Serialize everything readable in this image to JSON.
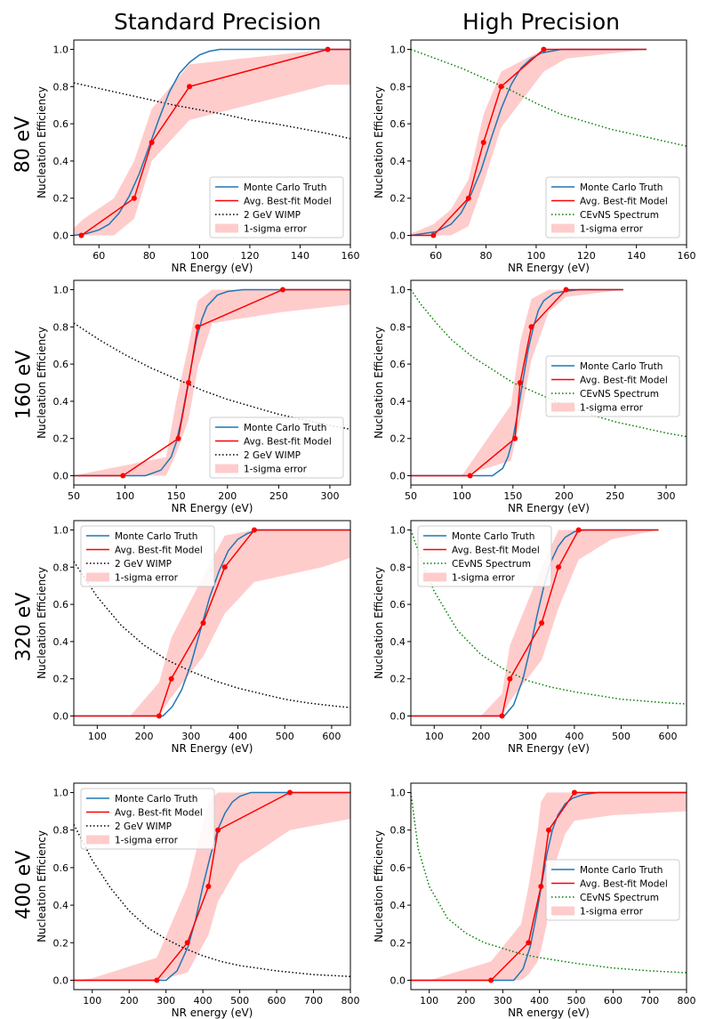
{
  "column_titles": [
    "Standard Precision",
    "High Precision"
  ],
  "row_labels": [
    "80 eV",
    "160 eV",
    "320 eV",
    "400 eV"
  ],
  "colors": {
    "truth": "#1f77b4",
    "model": "#ff0000",
    "band": "#ffcccc",
    "wimp": "#000000",
    "cevns": "#008000"
  },
  "chart_data": [
    {
      "id": "std-80",
      "type": "line",
      "panel": "Standard Precision / 80 eV",
      "xlabel": "NR Energy (eV)",
      "ylabel": "Nucleation Efficiency",
      "xlim": [
        50,
        160
      ],
      "ylim": [
        -0.05,
        1.05
      ],
      "xticks": [
        60,
        80,
        100,
        120,
        140,
        160
      ],
      "yticks": [
        0.0,
        0.2,
        0.4,
        0.6,
        0.8,
        1.0
      ],
      "legend": "lower-right",
      "legend_labels": [
        "Monte Carlo Truth",
        "Avg. Best-fit Model",
        "2 GeV WIMP",
        "1-sigma error"
      ],
      "truth_x": [
        50,
        55,
        60,
        64,
        68,
        72,
        76,
        80,
        84,
        88,
        92,
        96,
        100,
        104,
        108,
        112,
        116,
        120,
        130,
        145,
        160
      ],
      "truth_y": [
        0.0,
        0.01,
        0.03,
        0.06,
        0.12,
        0.21,
        0.33,
        0.48,
        0.63,
        0.77,
        0.87,
        0.93,
        0.97,
        0.99,
        1.0,
        1.0,
        1.0,
        1.0,
        1.0,
        1.0,
        1.0
      ],
      "model_x": [
        53,
        74,
        81,
        96,
        151,
        160
      ],
      "model_y": [
        0.0,
        0.2,
        0.5,
        0.8,
        1.0,
        1.0
      ],
      "band_x": [
        50,
        54,
        66,
        74,
        81,
        96,
        151,
        160
      ],
      "band_upper": [
        0.04,
        0.09,
        0.2,
        0.4,
        0.68,
        0.92,
        1.0,
        1.0
      ],
      "band_lower": [
        0.0,
        0.0,
        0.0,
        0.09,
        0.4,
        0.62,
        0.81,
        0.81
      ],
      "ref_name": "2 GeV WIMP",
      "ref_style": "wimp",
      "ref_x": [
        50,
        60,
        70,
        80,
        90,
        100,
        110,
        120,
        130,
        140,
        150,
        160
      ],
      "ref_y": [
        0.82,
        0.79,
        0.76,
        0.73,
        0.7,
        0.675,
        0.65,
        0.62,
        0.6,
        0.575,
        0.55,
        0.52
      ]
    },
    {
      "id": "hp-80",
      "type": "line",
      "panel": "High Precision / 80 eV",
      "xlabel": "NR Energy (eV)",
      "ylabel": "Nucleation Efficiency",
      "xlim": [
        50,
        160
      ],
      "ylim": [
        -0.05,
        1.05
      ],
      "xticks": [
        60,
        80,
        100,
        120,
        140,
        160
      ],
      "yticks": [
        0.0,
        0.2,
        0.4,
        0.6,
        0.8,
        1.0
      ],
      "legend": "lower-right",
      "legend_labels": [
        "Monte Carlo Truth",
        "Avg. Best-fit Model",
        "CEvNS Spectrum",
        "1-sigma error"
      ],
      "truth_x": [
        50,
        60,
        66,
        70,
        74,
        78,
        82,
        86,
        90,
        94,
        98,
        102,
        106,
        110,
        120,
        144
      ],
      "truth_y": [
        0.0,
        0.02,
        0.06,
        0.12,
        0.22,
        0.35,
        0.52,
        0.68,
        0.81,
        0.9,
        0.95,
        0.98,
        0.99,
        1.0,
        1.0,
        1.0
      ],
      "model_x": [
        50,
        59,
        73,
        79,
        86,
        103,
        144
      ],
      "model_y": [
        0.0,
        0.0,
        0.2,
        0.5,
        0.8,
        1.0,
        1.0
      ],
      "band_x": [
        50,
        59,
        66,
        73,
        79,
        86,
        103,
        112,
        144
      ],
      "band_upper": [
        0.01,
        0.06,
        0.14,
        0.3,
        0.65,
        0.88,
        1.0,
        1.0,
        1.0
      ],
      "band_lower": [
        0.0,
        0.0,
        0.0,
        0.05,
        0.28,
        0.58,
        0.88,
        0.95,
        1.0
      ],
      "ref_name": "CEvNS Spectrum",
      "ref_style": "cevns",
      "ref_x": [
        50,
        60,
        70,
        80,
        90,
        100,
        110,
        120,
        130,
        140,
        150,
        160
      ],
      "ref_y": [
        1.0,
        0.95,
        0.9,
        0.84,
        0.78,
        0.71,
        0.65,
        0.61,
        0.57,
        0.54,
        0.51,
        0.48
      ]
    },
    {
      "id": "std-160",
      "type": "line",
      "panel": "Standard Precision / 160 eV",
      "xlabel": "NR Energy (eV)",
      "ylabel": "Nucleation Efficiency",
      "xlim": [
        50,
        320
      ],
      "ylim": [
        -0.05,
        1.05
      ],
      "xticks": [
        50,
        100,
        150,
        200,
        250,
        300
      ],
      "yticks": [
        0.0,
        0.2,
        0.4,
        0.6,
        0.8,
        1.0
      ],
      "legend": "lower-right",
      "legend_labels": [
        "Monte Carlo Truth",
        "Avg. Best-fit Model",
        "2 GeV WIMP",
        "1-sigma error"
      ],
      "truth_x": [
        50,
        120,
        135,
        145,
        150,
        155,
        160,
        165,
        170,
        175,
        180,
        190,
        200,
        215,
        230,
        320
      ],
      "truth_y": [
        0.0,
        0.0,
        0.03,
        0.1,
        0.18,
        0.3,
        0.45,
        0.6,
        0.74,
        0.84,
        0.91,
        0.97,
        0.99,
        1.0,
        1.0,
        1.0
      ],
      "model_x": [
        50,
        98,
        152,
        162,
        171,
        254,
        320
      ],
      "model_y": [
        0.0,
        0.0,
        0.2,
        0.5,
        0.8,
        1.0,
        1.0
      ],
      "band_x": [
        50,
        140,
        150,
        162,
        171,
        185,
        254,
        320
      ],
      "band_upper": [
        0.0,
        0.1,
        0.4,
        0.7,
        0.94,
        1.0,
        1.0,
        1.0
      ],
      "band_lower": [
        0.0,
        0.0,
        0.12,
        0.3,
        0.58,
        0.82,
        0.88,
        0.92
      ],
      "ref_name": "2 GeV WIMP",
      "ref_style": "wimp",
      "ref_x": [
        50,
        75,
        100,
        125,
        150,
        175,
        200,
        225,
        250,
        275,
        300,
        320
      ],
      "ref_y": [
        0.82,
        0.73,
        0.65,
        0.58,
        0.52,
        0.46,
        0.41,
        0.37,
        0.33,
        0.3,
        0.27,
        0.25
      ]
    },
    {
      "id": "hp-160",
      "type": "line",
      "panel": "High Precision / 160 eV",
      "xlabel": "NR Energy (eV)",
      "ylabel": "Nucleation Efficiency",
      "xlim": [
        50,
        320
      ],
      "ylim": [
        -0.05,
        1.05
      ],
      "xticks": [
        50,
        100,
        150,
        200,
        250,
        300
      ],
      "yticks": [
        0.0,
        0.2,
        0.4,
        0.6,
        0.8,
        1.0
      ],
      "legend": "center-right",
      "legend_labels": [
        "Monte Carlo Truth",
        "Avg. Best-fit Model",
        "CEvNS Spectrum",
        "1-sigma error"
      ],
      "truth_x": [
        50,
        130,
        140,
        145,
        150,
        155,
        160,
        165,
        170,
        175,
        180,
        190,
        200,
        215,
        258
      ],
      "truth_y": [
        0.0,
        0.0,
        0.04,
        0.1,
        0.2,
        0.35,
        0.52,
        0.68,
        0.8,
        0.89,
        0.94,
        0.98,
        0.99,
        1.0,
        1.0
      ],
      "model_x": [
        50,
        108,
        152,
        157,
        168,
        202,
        258
      ],
      "model_y": [
        0.0,
        0.0,
        0.2,
        0.5,
        0.8,
        1.0,
        1.0
      ],
      "band_x": [
        50,
        100,
        148,
        157,
        168,
        185,
        202,
        258
      ],
      "band_upper": [
        0.0,
        0.0,
        0.38,
        0.72,
        0.95,
        1.0,
        1.0,
        1.0
      ],
      "band_lower": [
        0.0,
        0.0,
        0.08,
        0.3,
        0.62,
        0.88,
        0.96,
        1.0
      ],
      "ref_name": "CEvNS Spectrum",
      "ref_style": "cevns",
      "ref_x": [
        50,
        60,
        75,
        90,
        110,
        130,
        150,
        175,
        200,
        225,
        250,
        275,
        300,
        320
      ],
      "ref_y": [
        1.0,
        0.92,
        0.82,
        0.73,
        0.64,
        0.57,
        0.5,
        0.44,
        0.38,
        0.33,
        0.29,
        0.26,
        0.23,
        0.21
      ]
    },
    {
      "id": "std-320",
      "type": "line",
      "panel": "Standard Precision / 320 eV",
      "xlabel": "NR Energy (eV)",
      "ylabel": "Nucleation Efficiency",
      "xlim": [
        50,
        640
      ],
      "ylim": [
        -0.05,
        1.05
      ],
      "xticks": [
        100,
        200,
        300,
        400,
        500,
        600
      ],
      "yticks": [
        0.0,
        0.2,
        0.4,
        0.6,
        0.8,
        1.0
      ],
      "legend": "upper-left",
      "legend_labels": [
        "Monte Carlo Truth",
        "Avg. Best-fit Model",
        "2 GeV WIMP",
        "1-sigma error"
      ],
      "truth_x": [
        50,
        240,
        260,
        280,
        300,
        320,
        340,
        360,
        380,
        400,
        420,
        440,
        470,
        640
      ],
      "truth_y": [
        0.0,
        0.0,
        0.05,
        0.14,
        0.28,
        0.46,
        0.64,
        0.78,
        0.89,
        0.95,
        0.98,
        1.0,
        1.0,
        1.0
      ],
      "model_x": [
        50,
        232,
        258,
        326,
        372,
        435,
        640
      ],
      "model_y": [
        0.0,
        0.0,
        0.2,
        0.5,
        0.8,
        1.0,
        1.0
      ],
      "band_x": [
        50,
        170,
        232,
        258,
        326,
        372,
        435,
        580,
        640
      ],
      "band_upper": [
        0.0,
        0.0,
        0.18,
        0.42,
        0.75,
        0.97,
        1.0,
        1.0,
        1.0
      ],
      "band_lower": [
        0.0,
        0.0,
        0.0,
        0.1,
        0.32,
        0.55,
        0.72,
        0.8,
        0.85
      ],
      "ref_name": "2 GeV WIMP",
      "ref_style": "wimp",
      "ref_x": [
        50,
        100,
        150,
        200,
        250,
        300,
        350,
        400,
        450,
        500,
        550,
        600,
        640
      ],
      "ref_y": [
        0.83,
        0.64,
        0.49,
        0.38,
        0.3,
        0.24,
        0.19,
        0.15,
        0.12,
        0.09,
        0.07,
        0.055,
        0.045
      ]
    },
    {
      "id": "hp-320",
      "type": "line",
      "panel": "High Precision / 320 eV",
      "xlabel": "NR Energy (eV)",
      "ylabel": "Nucleation Efficiency",
      "xlim": [
        50,
        640
      ],
      "ylim": [
        -0.05,
        1.05
      ],
      "xticks": [
        100,
        200,
        300,
        400,
        500,
        600
      ],
      "yticks": [
        0.0,
        0.2,
        0.4,
        0.6,
        0.8,
        1.0
      ],
      "legend": "upper-left",
      "legend_labels": [
        "Monte Carlo Truth",
        "Avg. Best-fit Model",
        "CEvNS Spectrum",
        "1-sigma error"
      ],
      "truth_x": [
        50,
        250,
        270,
        290,
        305,
        320,
        335,
        350,
        365,
        380,
        400,
        420,
        450,
        580
      ],
      "truth_y": [
        0.0,
        0.0,
        0.06,
        0.2,
        0.36,
        0.54,
        0.7,
        0.83,
        0.91,
        0.96,
        0.99,
        1.0,
        1.0,
        1.0
      ],
      "model_x": [
        50,
        245,
        262,
        330,
        366,
        409,
        580
      ],
      "model_y": [
        0.0,
        0.0,
        0.2,
        0.5,
        0.8,
        1.0,
        1.0
      ],
      "band_x": [
        50,
        200,
        245,
        262,
        330,
        366,
        409,
        480,
        580
      ],
      "band_upper": [
        0.0,
        0.0,
        0.12,
        0.38,
        0.8,
        1.0,
        1.0,
        1.0,
        1.0
      ],
      "band_lower": [
        0.0,
        0.0,
        0.0,
        0.08,
        0.3,
        0.58,
        0.84,
        0.95,
        1.0
      ],
      "ref_name": "CEvNS Spectrum",
      "ref_style": "cevns",
      "ref_x": [
        50,
        75,
        100,
        150,
        200,
        250,
        300,
        350,
        400,
        450,
        500,
        550,
        600,
        640
      ],
      "ref_y": [
        1.0,
        0.82,
        0.67,
        0.46,
        0.33,
        0.25,
        0.19,
        0.155,
        0.13,
        0.11,
        0.09,
        0.08,
        0.07,
        0.065
      ]
    },
    {
      "id": "std-400",
      "type": "line",
      "panel": "Standard Precision / 400 eV",
      "xlabel": "NR energy (eV)",
      "ylabel": "Nucleation Efficiency",
      "xlim": [
        50,
        800
      ],
      "ylim": [
        -0.05,
        1.05
      ],
      "xticks": [
        100,
        200,
        300,
        400,
        500,
        600,
        700,
        800
      ],
      "yticks": [
        0.0,
        0.2,
        0.4,
        0.6,
        0.8,
        1.0
      ],
      "legend": "upper-left",
      "legend_labels": [
        "Monte Carlo Truth",
        "Avg. Best-fit Model",
        "2 GeV WIMP",
        "1-sigma error"
      ],
      "truth_x": [
        50,
        300,
        330,
        360,
        380,
        400,
        420,
        440,
        460,
        480,
        500,
        530,
        560,
        800
      ],
      "truth_y": [
        0.0,
        0.0,
        0.05,
        0.18,
        0.32,
        0.5,
        0.66,
        0.8,
        0.89,
        0.95,
        0.98,
        1.0,
        1.0,
        1.0
      ],
      "model_x": [
        50,
        275,
        358,
        415,
        441,
        636,
        800
      ],
      "model_y": [
        0.0,
        0.0,
        0.2,
        0.5,
        0.8,
        1.0,
        1.0
      ],
      "band_x": [
        50,
        100,
        275,
        358,
        415,
        441,
        500,
        636,
        800
      ],
      "band_upper": [
        0.0,
        0.01,
        0.12,
        0.5,
        0.95,
        1.0,
        1.0,
        1.0,
        1.0
      ],
      "band_lower": [
        0.0,
        0.0,
        0.0,
        0.04,
        0.24,
        0.42,
        0.62,
        0.8,
        0.86
      ],
      "ref_name": "2 GeV WIMP",
      "ref_style": "wimp",
      "ref_x": [
        50,
        100,
        150,
        200,
        250,
        300,
        350,
        400,
        450,
        500,
        600,
        700,
        800
      ],
      "ref_y": [
        0.83,
        0.64,
        0.49,
        0.37,
        0.28,
        0.22,
        0.17,
        0.13,
        0.1,
        0.078,
        0.05,
        0.03,
        0.02
      ]
    },
    {
      "id": "hp-400",
      "type": "line",
      "panel": "High Precision / 400 eV",
      "xlabel": "NR energy (eV)",
      "ylabel": "Nucleation Efficiency",
      "xlim": [
        50,
        800
      ],
      "ylim": [
        -0.05,
        1.05
      ],
      "xticks": [
        100,
        200,
        300,
        400,
        500,
        600,
        700,
        800
      ],
      "yticks": [
        0.0,
        0.2,
        0.4,
        0.6,
        0.8,
        1.0
      ],
      "legend": "center-right",
      "legend_labels": [
        "Monte Carlo Truth",
        "Avg. Best-fit Model",
        "CEvNS Spectrum",
        "1-sigma error"
      ],
      "truth_x": [
        50,
        330,
        355,
        375,
        390,
        405,
        420,
        435,
        450,
        470,
        490,
        520,
        560,
        800
      ],
      "truth_y": [
        0.0,
        0.0,
        0.06,
        0.18,
        0.33,
        0.5,
        0.67,
        0.8,
        0.88,
        0.94,
        0.97,
        0.99,
        1.0,
        1.0
      ],
      "model_x": [
        50,
        268,
        370,
        404,
        425,
        495,
        800
      ],
      "model_y": [
        0.0,
        0.0,
        0.2,
        0.5,
        0.8,
        1.0,
        1.0
      ],
      "band_x": [
        50,
        100,
        268,
        350,
        370,
        395,
        404,
        420,
        425,
        470,
        495,
        600,
        800
      ],
      "band_upper": [
        0.0,
        0.0,
        0.1,
        0.3,
        0.5,
        0.8,
        0.95,
        1.0,
        1.0,
        1.0,
        1.0,
        1.0,
        1.0
      ],
      "band_lower": [
        0.0,
        0.0,
        0.0,
        0.0,
        0.03,
        0.1,
        0.16,
        0.3,
        0.52,
        0.78,
        0.85,
        0.88,
        0.9
      ],
      "ref_name": "CEvNS Spectrum",
      "ref_style": "cevns",
      "ref_x": [
        50,
        70,
        100,
        150,
        200,
        250,
        300,
        350,
        400,
        500,
        600,
        700,
        800
      ],
      "ref_y": [
        1.0,
        0.7,
        0.5,
        0.33,
        0.25,
        0.2,
        0.17,
        0.14,
        0.12,
        0.09,
        0.065,
        0.05,
        0.04
      ]
    }
  ]
}
